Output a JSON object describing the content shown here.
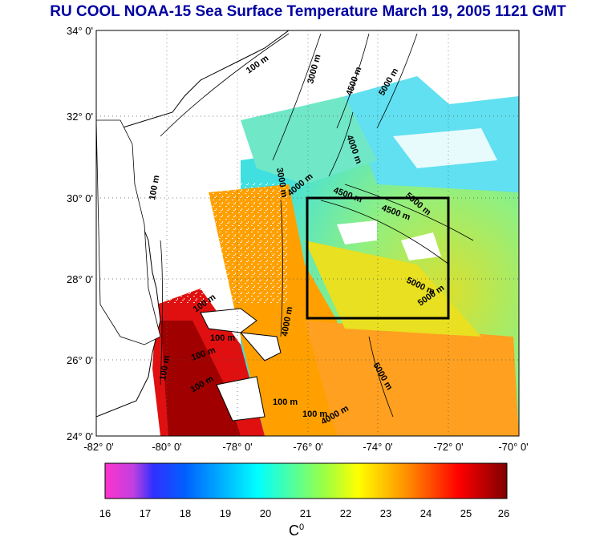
{
  "title": "RU COOL  NOAA-15 Sea Surface Temperature March 19, 2005 1121 GMT",
  "axes": {
    "lat_labels": [
      "34° 0'",
      "32° 0'",
      "30° 0'",
      "28° 0'",
      "26° 0'",
      "24° 0'"
    ],
    "lon_labels": [
      "-82° 0'",
      "-80° 0'",
      "-78° 0'",
      "-76° 0'",
      "-74° 0'",
      "-72° 0'",
      "-70° 0'"
    ]
  },
  "colorbar": {
    "ticks": [
      "16",
      "17",
      "18",
      "19",
      "20",
      "21",
      "22",
      "23",
      "24",
      "25",
      "26"
    ],
    "unit_base": "C",
    "unit_sup": "0",
    "colors": [
      "#ff33cc",
      "#0000ff",
      "#00ffff",
      "#ffff00",
      "#ff0000",
      "#800000"
    ]
  },
  "contour_labels": [
    "100 m",
    "3000 m",
    "4500 m",
    "5000 m",
    "4000 m",
    "3000 m",
    "100 m",
    "4000 m",
    "4500 m",
    "5000 m",
    "4500 m",
    "5000 m",
    "5000 m",
    "100 m",
    "100 m",
    "100 m",
    "100 m",
    "100 m",
    "4000 m",
    "5000 m",
    "100 m",
    "100 m",
    "4000 m"
  ],
  "colors": {
    "title": "#0000a0",
    "land": "#ffffff",
    "box": "#000000"
  }
}
